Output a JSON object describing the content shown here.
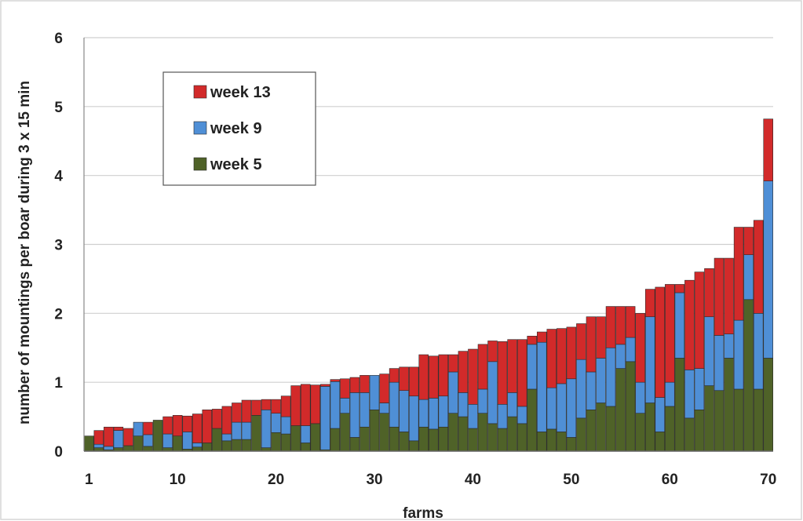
{
  "chart_data": {
    "type": "bar",
    "stacked": true,
    "xlabel": "farms",
    "ylabel": "number of mountings per boar during 3 x 15 min",
    "ylim": [
      0,
      6
    ],
    "yticks": [
      0,
      1,
      2,
      3,
      4,
      5,
      6
    ],
    "xticks": [
      1,
      10,
      20,
      30,
      40,
      50,
      60,
      70
    ],
    "grid": true,
    "legend_position": "top-left",
    "legend_order": [
      "week 13",
      "week 9",
      "week 5"
    ],
    "x": [
      1,
      2,
      3,
      4,
      5,
      6,
      7,
      8,
      9,
      10,
      11,
      12,
      13,
      14,
      15,
      16,
      17,
      18,
      19,
      20,
      21,
      22,
      23,
      24,
      25,
      26,
      27,
      28,
      29,
      30,
      31,
      32,
      33,
      34,
      35,
      36,
      37,
      38,
      39,
      40,
      41,
      42,
      43,
      44,
      45,
      46,
      47,
      48,
      49,
      50,
      51,
      52,
      53,
      54,
      55,
      56,
      57,
      58,
      59,
      60,
      61,
      62,
      63,
      64,
      65,
      66,
      67,
      68,
      69,
      70
    ],
    "series": [
      {
        "name": "week 5",
        "color": "#4f6228",
        "values": [
          0.22,
          0.05,
          0.02,
          0.05,
          0.08,
          0.22,
          0.07,
          0.45,
          0.05,
          0.22,
          0.03,
          0.06,
          0.12,
          0.33,
          0.15,
          0.17,
          0.17,
          0.52,
          0.05,
          0.27,
          0.25,
          0.37,
          0.12,
          0.4,
          0.02,
          0.33,
          0.55,
          0.2,
          0.35,
          0.6,
          0.55,
          0.35,
          0.28,
          0.15,
          0.35,
          0.32,
          0.35,
          0.55,
          0.5,
          0.33,
          0.55,
          0.4,
          0.33,
          0.5,
          0.4,
          0.9,
          0.28,
          0.32,
          0.28,
          0.2,
          0.48,
          0.6,
          0.7,
          0.65,
          1.2,
          1.3,
          0.55,
          0.7,
          0.28,
          0.65,
          1.35,
          0.48,
          0.6,
          0.95,
          0.88,
          1.35,
          0.9,
          2.2,
          0.9,
          1.35
        ]
      },
      {
        "name": "week 9",
        "color": "#4f8fd6",
        "values": [
          0.0,
          0.05,
          0.05,
          0.25,
          0.0,
          0.2,
          0.17,
          0.0,
          0.2,
          0.0,
          0.25,
          0.06,
          0.0,
          0.0,
          0.1,
          0.25,
          0.25,
          0.0,
          0.55,
          0.28,
          0.25,
          0.0,
          0.25,
          0.0,
          0.92,
          0.68,
          0.22,
          0.65,
          0.5,
          0.5,
          0.15,
          0.65,
          0.6,
          0.65,
          0.4,
          0.45,
          0.45,
          0.6,
          0.35,
          0.35,
          0.35,
          0.9,
          0.35,
          0.35,
          0.25,
          0.65,
          1.3,
          0.6,
          0.7,
          0.85,
          0.85,
          0.55,
          0.65,
          0.85,
          0.35,
          0.35,
          0.45,
          1.25,
          0.5,
          0.35,
          0.95,
          0.7,
          0.6,
          1.0,
          0.8,
          0.35,
          1.0,
          0.65,
          1.1,
          2.57
        ]
      },
      {
        "name": "week 13",
        "color": "#d22a2a",
        "values": [
          0.0,
          0.2,
          0.28,
          0.05,
          0.25,
          0.0,
          0.18,
          0.0,
          0.25,
          0.3,
          0.23,
          0.42,
          0.48,
          0.28,
          0.4,
          0.28,
          0.32,
          0.22,
          0.15,
          0.2,
          0.3,
          0.58,
          0.6,
          0.56,
          0.03,
          0.03,
          0.28,
          0.22,
          0.25,
          0.0,
          0.42,
          0.2,
          0.34,
          0.42,
          0.65,
          0.61,
          0.6,
          0.25,
          0.6,
          0.8,
          0.65,
          0.3,
          0.91,
          0.77,
          0.97,
          0.12,
          0.15,
          0.85,
          0.8,
          0.75,
          0.52,
          0.8,
          0.6,
          0.6,
          0.55,
          0.45,
          1.0,
          0.4,
          1.6,
          1.42,
          0.12,
          1.3,
          1.4,
          0.7,
          1.12,
          1.1,
          1.35,
          0.4,
          1.35,
          0.9
        ]
      }
    ]
  }
}
